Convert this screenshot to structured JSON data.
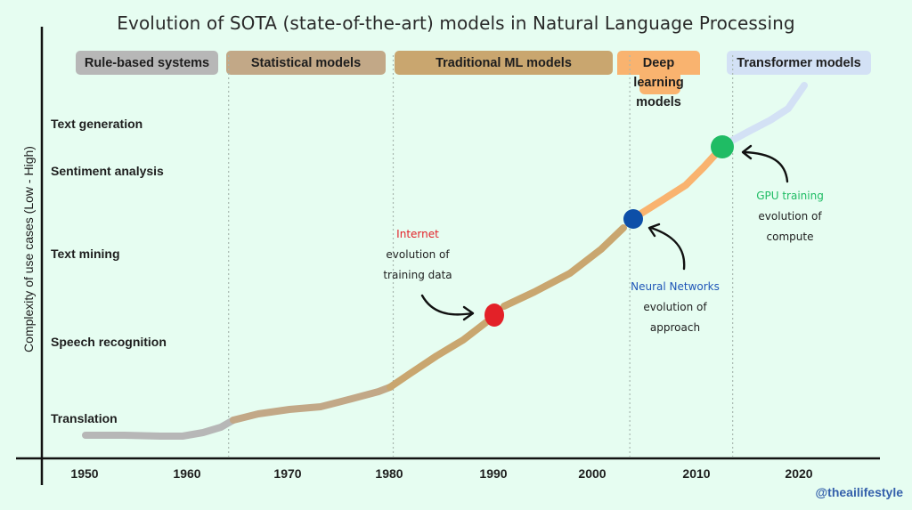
{
  "title": "Evolution of SOTA (state-of-the-art) models in Natural Language Processing",
  "eras": [
    {
      "label": "Rule-based systems",
      "color": "#b7b7b7",
      "start_year": 1950,
      "end_year": 1964
    },
    {
      "label": "Statistical models",
      "color": "#c2a887",
      "start_year": 1964,
      "end_year": 1980
    },
    {
      "label": "Traditional ML models",
      "color": "#c9a66f",
      "start_year": 1980,
      "end_year": 2003
    },
    {
      "label": "Deep learning models",
      "label_line1": "Deep learning",
      "label_line2": "models",
      "color": "#f9b36f",
      "start_year": 2003,
      "end_year": 2013
    },
    {
      "label": "Transformer models",
      "color": "#d3e1f5",
      "start_year": 2013,
      "end_year": 2023
    }
  ],
  "y_axis": {
    "title": "Complexity of use cases (Low - High)",
    "levels": [
      "Translation",
      "Speech recognition",
      "Text mining",
      "Sentiment analysis",
      "Text generation"
    ]
  },
  "x_axis": {
    "ticks": [
      "1950",
      "1960",
      "1970",
      "1980",
      "1990",
      "2000",
      "2010",
      "2020"
    ]
  },
  "milestones": [
    {
      "name": "internet",
      "highlight": "Internet",
      "line1": "evolution of",
      "line2": "training data",
      "color": "#e32128",
      "year": 1991
    },
    {
      "name": "neural-networks",
      "highlight": "Neural Networks",
      "line1": "evolution of",
      "line2": "approach",
      "color": "#0d4fa8",
      "year": 2005
    },
    {
      "name": "gpu-training",
      "highlight": "GPU training",
      "line1": "evolution of",
      "line2": "compute",
      "color": "#1fbc64",
      "year": 2014
    }
  ],
  "colors": {
    "background": "#e6fdf1",
    "axis": "#111111",
    "divider": "#a8b8b0"
  },
  "watermark": "@theailifestyle"
}
